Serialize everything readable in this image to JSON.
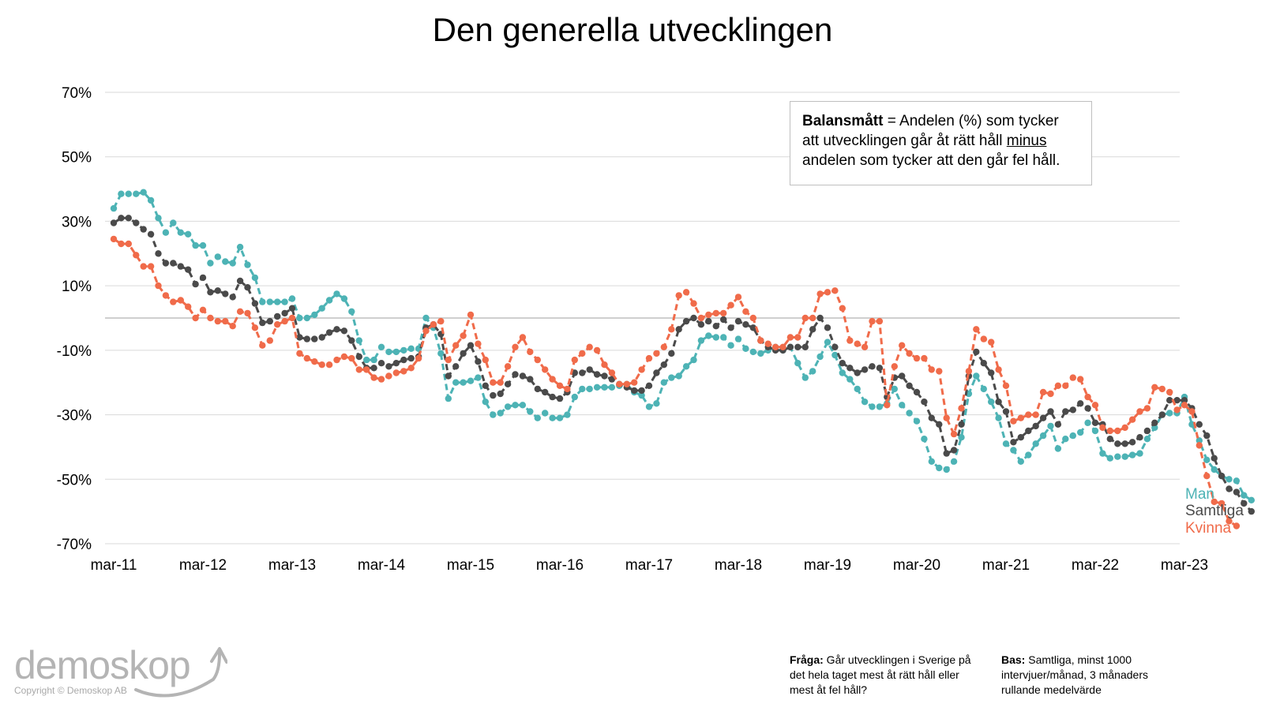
{
  "chart_data": {
    "type": "line",
    "title": "Den generella utvecklingen",
    "xlabel": "",
    "ylabel": "",
    "ylim": [
      -70,
      70
    ],
    "yticks": [
      "70%",
      "50%",
      "30%",
      "10%",
      "-10%",
      "-30%",
      "-50%",
      "-70%"
    ],
    "ytick_values": [
      70,
      50,
      30,
      10,
      -10,
      -30,
      -50,
      -70
    ],
    "xticks": [
      "mar-11",
      "mar-12",
      "mar-13",
      "mar-14",
      "mar-15",
      "mar-16",
      "mar-17",
      "mar-18",
      "mar-19",
      "mar-20",
      "mar-21",
      "mar-22",
      "mar-23"
    ],
    "x_start": "mar-11",
    "x_step": "month",
    "grid": true,
    "series": [
      {
        "name": "Man",
        "color": "#4db3b5",
        "values": [
          34,
          38.5,
          38.5,
          38.5,
          39,
          36.5,
          31,
          26.5,
          29.5,
          26.5,
          26,
          22.5,
          22.5,
          17,
          19,
          17.5,
          17,
          22,
          16.5,
          12.5,
          5,
          5,
          5,
          5,
          6,
          0,
          0,
          1,
          3,
          5.5,
          7.5,
          6,
          2,
          -7,
          -13,
          -13,
          -9,
          -10.5,
          -10.5,
          -10,
          -9.5,
          -9.5,
          0,
          -3,
          -11,
          -25,
          -20,
          -20,
          -19.5,
          -18.5,
          -26,
          -30,
          -29.5,
          -27.5,
          -27,
          -27,
          -29,
          -31,
          -29.5,
          -31,
          -31,
          -30,
          -24.5,
          -22,
          -22,
          -21.5,
          -21.5,
          -21.5,
          -21,
          -20.5,
          -23,
          -24,
          -27.5,
          -26.5,
          -20,
          -18.5,
          -18,
          -15,
          -13,
          -7,
          -5.5,
          -6,
          -6,
          -8.5,
          -6.5,
          -9.5,
          -10.5,
          -11,
          -10,
          -9,
          -10,
          -9,
          -14,
          -18.5,
          -16.5,
          -12,
          -7.5,
          -11.5,
          -17,
          -19,
          -22,
          -26,
          -27.5,
          -27.5,
          -26.5,
          -22,
          -27,
          -29.5,
          -32,
          -37.5,
          -44.5,
          -46.5,
          -47,
          -44.5,
          -37,
          -23.5,
          -18,
          -22,
          -26,
          -31,
          -39,
          -41,
          -44.5,
          -42.5,
          -39,
          -36.5,
          -33.5,
          -40.5,
          -37.5,
          -36.5,
          -35.5,
          -32.5,
          -35,
          -42,
          -43.5,
          -43,
          -43,
          -42.5,
          -42,
          -37.5,
          -34,
          -30,
          -29.5,
          -29.5,
          -24.5,
          -33,
          -38,
          -44,
          -47,
          -49,
          -50,
          -50.5,
          -55,
          -56.5
        ]
      },
      {
        "name": "Samtliga",
        "color": "#4a4a4a",
        "values": [
          29.5,
          31,
          31,
          29.5,
          27.5,
          26,
          20,
          17,
          17,
          16,
          15,
          10.5,
          12.5,
          8,
          8.5,
          7.5,
          6.5,
          11.5,
          9.5,
          4.5,
          -1.5,
          -1,
          0.5,
          1.5,
          3,
          -6,
          -6.5,
          -6.5,
          -6,
          -4.5,
          -3.5,
          -4,
          -7,
          -12,
          -15.5,
          -15.5,
          -14,
          -15,
          -14,
          -13,
          -12.5,
          -12,
          -3,
          -2,
          -5,
          -18,
          -15,
          -11,
          -8.5,
          -13.5,
          -21,
          -24,
          -23.5,
          -20.5,
          -17.5,
          -18,
          -19,
          -22,
          -23,
          -24.5,
          -25,
          -23,
          -17,
          -17,
          -16,
          -17.5,
          -18,
          -19,
          -20.5,
          -21.5,
          -22.5,
          -22.5,
          -21,
          -17,
          -14.5,
          -11,
          -3.5,
          -1,
          0,
          -2,
          -1,
          -2.5,
          -0.5,
          -3,
          -1,
          -2,
          -3,
          -7,
          -9,
          -10,
          -10,
          -9,
          -9,
          -9,
          -3.5,
          0,
          -3,
          -9,
          -14,
          -15.5,
          -17,
          -16,
          -15,
          -15.5,
          -24.5,
          -18.5,
          -18,
          -21,
          -23,
          -26,
          -31,
          -33,
          -42,
          -41,
          -33,
          -18,
          -10.5,
          -14,
          -17,
          -26,
          -29,
          -38.5,
          -37,
          -35,
          -33.5,
          -31,
          -29,
          -33,
          -29,
          -28.5,
          -26.5,
          -28,
          -32.5,
          -33,
          -37.5,
          -39,
          -39,
          -38.5,
          -37,
          -35,
          -32.5,
          -30,
          -25.5,
          -25.5,
          -25.5,
          -28,
          -33,
          -36.5,
          -43.5,
          -49,
          -53,
          -54,
          -57.5,
          -60
        ]
      },
      {
        "name": "Kvinna",
        "color": "#f06b4a",
        "values": [
          24.5,
          23,
          23,
          19.5,
          16,
          16,
          10,
          7,
          5,
          5.5,
          3.5,
          0,
          2.5,
          0,
          -1,
          -1,
          -2.5,
          2,
          1.5,
          -3,
          -8.5,
          -7,
          -2,
          -1,
          0,
          -11,
          -12.5,
          -13.5,
          -14.5,
          -14.5,
          -13,
          -12,
          -12.5,
          -16,
          -16,
          -18.5,
          -19,
          -18,
          -17,
          -16.5,
          -15.5,
          -12.5,
          -4,
          -2,
          -1,
          -13,
          -8.5,
          -5.5,
          1,
          -8,
          -13,
          -20,
          -20,
          -15,
          -9,
          -6,
          -10.5,
          -13,
          -16,
          -19,
          -21,
          -22,
          -13,
          -11,
          -9,
          -10,
          -14.5,
          -17,
          -20.5,
          -20.5,
          -20,
          -16,
          -12.5,
          -11,
          -9,
          -3.5,
          7,
          8,
          4.5,
          0,
          1,
          1.5,
          1.5,
          4,
          6.5,
          2,
          0,
          -7,
          -8,
          -9,
          -9,
          -6,
          -6,
          0,
          0,
          7.5,
          8,
          8.5,
          3,
          -7,
          -8,
          -9,
          -1,
          -1,
          -27,
          -15,
          -8.5,
          -11,
          -12.5,
          -12.5,
          -16,
          -16.5,
          -31,
          -36,
          -28,
          -16.5,
          -3.5,
          -6.5,
          -7.5,
          -16,
          -21,
          -32,
          -31,
          -30,
          -30,
          -23,
          -23.5,
          -21,
          -21,
          -18.5,
          -19,
          -24.5,
          -27,
          -34,
          -35,
          -35,
          -34,
          -31.5,
          -29,
          -28,
          -21.5,
          -22,
          -23,
          -28.5,
          -27,
          -29,
          -39.5,
          -49,
          -57,
          -57.5,
          -63,
          -64.5
        ]
      }
    ],
    "end_labels": [
      "Man",
      "Samtliga",
      "Kvinna"
    ]
  },
  "note": {
    "bold": "Balansmått",
    "text_before": " = Andelen (%) som tycker att utvecklingen går åt rätt håll ",
    "underlined": "minus",
    "text_after": " andelen som tycker att den går fel håll."
  },
  "logo": {
    "word": "demoskop",
    "copyright": "Copyright © Demoskop AB"
  },
  "footer": {
    "question_label": "Fråga:",
    "question_text": " Går utvecklingen i Sverige på det hela taget mest åt rätt håll eller mest åt fel håll?",
    "base_label": "Bas:",
    "base_text": " Samtliga, minst 1000 intervjuer/månad, 3 månaders rullande medelvärde"
  }
}
